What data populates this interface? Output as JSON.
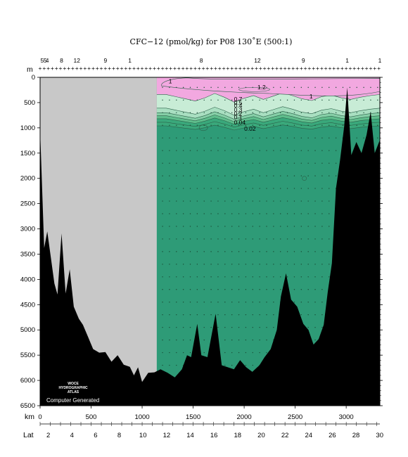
{
  "chart_data": {
    "type": "heatmap",
    "title": "CFC−12 (pmol/kg) for P08 130˚E (500:1)",
    "depth_axis": {
      "label": "m",
      "range": [
        0,
        6500
      ],
      "ticks": [
        0,
        500,
        1000,
        1500,
        2000,
        2500,
        3000,
        3500,
        4000,
        4500,
        5000,
        5500,
        6000,
        6500
      ]
    },
    "distance_axis": {
      "label": "km",
      "range": [
        0,
        3330
      ],
      "ticks": [
        0,
        500,
        1000,
        1500,
        2000,
        2500,
        3000
      ]
    },
    "latitude_axis": {
      "label": "Lat",
      "ticks": [
        "2",
        "4",
        "6",
        "8",
        "10",
        "12",
        "14",
        "16",
        "18",
        "20",
        "22",
        "24",
        "26",
        "28",
        "30"
      ],
      "tick_km": [
        40,
        156,
        272,
        388,
        504,
        620,
        736,
        852,
        968,
        1084,
        1200,
        1316,
        1432,
        1548,
        1664
      ]
    },
    "station_labels": [
      {
        "km": 20,
        "text": "5"
      },
      {
        "km": 50,
        "text": "5"
      },
      {
        "km": 70,
        "text": "4"
      },
      {
        "km": 210,
        "text": "8"
      },
      {
        "km": 360,
        "text": "12"
      },
      {
        "km": 640,
        "text": "9"
      },
      {
        "km": 880,
        "text": "1"
      },
      {
        "km": 1580,
        "text": "8"
      },
      {
        "km": 2130,
        "text": "12"
      },
      {
        "km": 2580,
        "text": "9"
      },
      {
        "km": 3010,
        "text": "1"
      },
      {
        "km": 3330,
        "text": "1"
      }
    ],
    "contour_labels": [
      {
        "km": 1260,
        "depth": 120,
        "text": "1"
      },
      {
        "km": 2130,
        "depth": 240,
        "text": "1.2"
      },
      {
        "km": 2640,
        "depth": 420,
        "text": "1"
      },
      {
        "km": 1900,
        "depth": 470,
        "text": "0.7"
      },
      {
        "km": 1900,
        "depth": 540,
        "text": "0.5"
      },
      {
        "km": 1900,
        "depth": 600,
        "text": "0.4"
      },
      {
        "km": 1900,
        "depth": 680,
        "text": "0.3"
      },
      {
        "km": 1900,
        "depth": 760,
        "text": "0.2"
      },
      {
        "km": 1900,
        "depth": 830,
        "text": "0.1"
      },
      {
        "km": 1900,
        "depth": 930,
        "text": "0.04"
      },
      {
        "km": 2000,
        "depth": 1060,
        "text": "0.02"
      }
    ],
    "fill_levels": [
      {
        "value": 1.0,
        "color": "#f2a8e0"
      },
      {
        "value": 0.7,
        "color": "#c8ecd6"
      },
      {
        "value": 0.5,
        "color": "#a9dfc1"
      },
      {
        "value": 0.3,
        "color": "#86cfa7"
      },
      {
        "value": 0.1,
        "color": "#5fbd8c"
      },
      {
        "value": 0.02,
        "color": "#3aa87b"
      },
      {
        "value": 0.0,
        "color": "#2e9b77"
      }
    ],
    "no_data_range_km": [
      0,
      1140
    ],
    "colors": {
      "no_data": "#c8c8c8",
      "bathymetry": "#000000",
      "station_marker_left": "#d0322a",
      "station_marker_right": "#2a9d3a"
    }
  },
  "watermark": {
    "line1": "WOCE",
    "line2": "HYDROGRAPHIC",
    "line3": "ATLAS",
    "stamp": "Computer Generated"
  }
}
